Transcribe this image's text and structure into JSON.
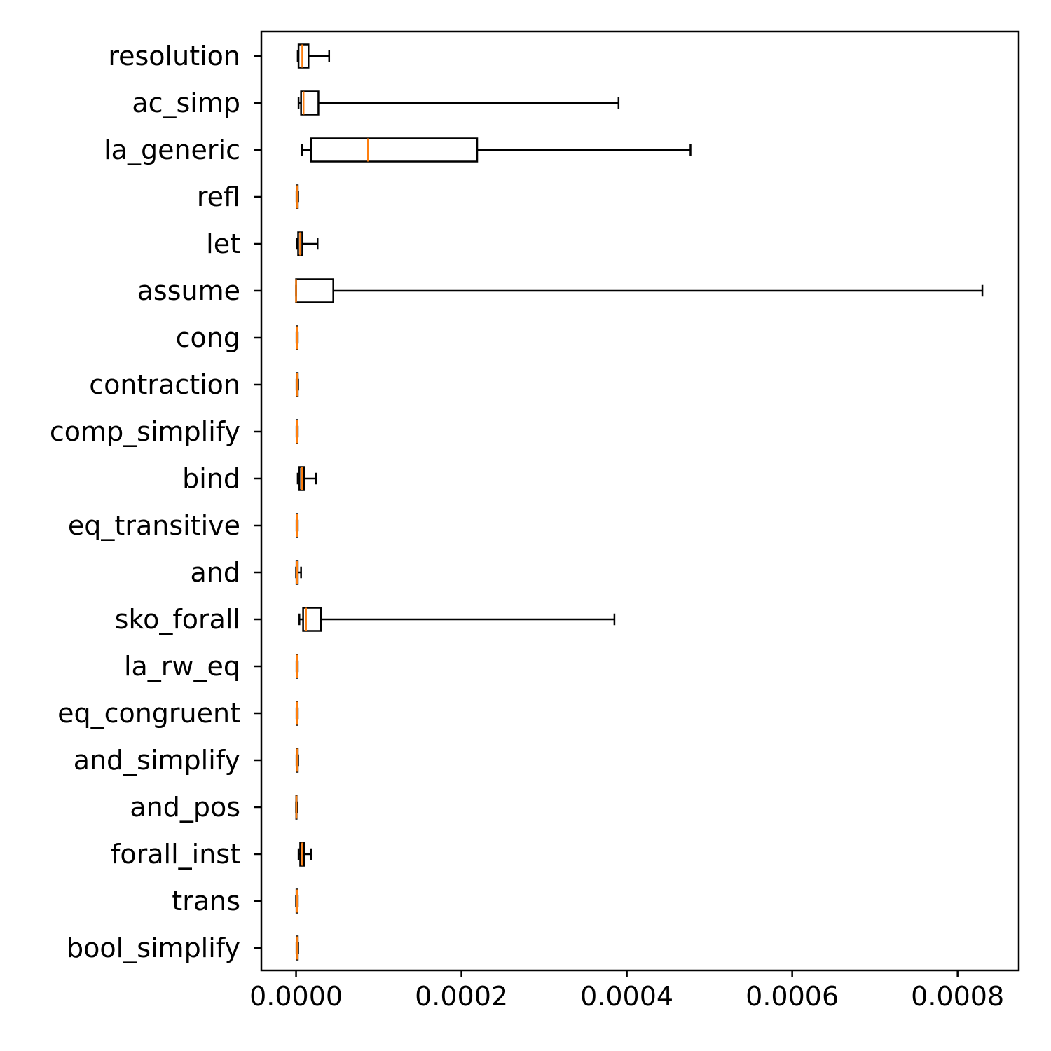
{
  "chart_data": {
    "type": "boxplot",
    "orientation": "horizontal",
    "title": "",
    "xlabel": "",
    "ylabel": "",
    "xlim": [
      -4.2e-05,
      0.000874
    ],
    "xticks": [
      0.0,
      0.0002,
      0.0004,
      0.0006,
      0.0008
    ],
    "xtick_labels": [
      "0.0000",
      "0.0002",
      "0.0004",
      "0.0006",
      "0.0008"
    ],
    "grid": false,
    "colors": {
      "box": "#000000",
      "median": "#ff7f0e"
    },
    "series": [
      {
        "category": "resolution",
        "whisker_low": 2e-06,
        "q1": 3e-06,
        "median": 7.5e-06,
        "q3": 1.5e-05,
        "whisker_high": 4e-05
      },
      {
        "category": "ac_simp",
        "whisker_low": 3e-06,
        "q1": 6e-06,
        "median": 9e-06,
        "q3": 2.7e-05,
        "whisker_high": 0.00039
      },
      {
        "category": "la_generic",
        "whisker_low": 7e-06,
        "q1": 1.8e-05,
        "median": 8.7e-05,
        "q3": 0.000219,
        "whisker_high": 0.000477
      },
      {
        "category": "refl",
        "whisker_low": 5e-07,
        "q1": 1e-06,
        "median": 1.5e-06,
        "q3": 2e-06,
        "whisker_high": 2.5e-06
      },
      {
        "category": "let",
        "whisker_low": 1e-06,
        "q1": 2.5e-06,
        "median": 5e-06,
        "q3": 7.5e-06,
        "whisker_high": 2.6e-05
      },
      {
        "category": "assume",
        "whisker_low": 0.0,
        "q1": 0.0,
        "median": 0.0,
        "q3": 4.5e-05,
        "whisker_high": 0.00083
      },
      {
        "category": "cong",
        "whisker_low": 5e-07,
        "q1": 1e-06,
        "median": 1.2e-06,
        "q3": 1.5e-06,
        "whisker_high": 2e-06
      },
      {
        "category": "contraction",
        "whisker_low": 5e-07,
        "q1": 1e-06,
        "median": 1.5e-06,
        "q3": 2e-06,
        "whisker_high": 2.5e-06
      },
      {
        "category": "comp_simplify",
        "whisker_low": 5e-07,
        "q1": 1e-06,
        "median": 1.2e-06,
        "q3": 1.5e-06,
        "whisker_high": 2e-06
      },
      {
        "category": "bind",
        "whisker_low": 2e-06,
        "q1": 4e-06,
        "median": 7e-06,
        "q3": 9.5e-06,
        "whisker_high": 2.4e-05
      },
      {
        "category": "eq_transitive",
        "whisker_low": 5e-07,
        "q1": 1e-06,
        "median": 1.2e-06,
        "q3": 1.5e-06,
        "whisker_high": 2e-06
      },
      {
        "category": "and",
        "whisker_low": 0.0,
        "q1": 5e-07,
        "median": 1e-06,
        "q3": 2e-06,
        "whisker_high": 6e-06
      },
      {
        "category": "sko_forall",
        "whisker_low": 4e-06,
        "q1": 8.5e-06,
        "median": 1.2e-05,
        "q3": 3e-05,
        "whisker_high": 0.000385
      },
      {
        "category": "la_rw_eq",
        "whisker_low": 5e-07,
        "q1": 1e-06,
        "median": 1.2e-06,
        "q3": 1.5e-06,
        "whisker_high": 2e-06
      },
      {
        "category": "eq_congruent",
        "whisker_low": 5e-07,
        "q1": 1e-06,
        "median": 1.2e-06,
        "q3": 1.5e-06,
        "whisker_high": 2e-06
      },
      {
        "category": "and_simplify",
        "whisker_low": 5e-07,
        "q1": 1e-06,
        "median": 1.5e-06,
        "q3": 2e-06,
        "whisker_high": 2.5e-06
      },
      {
        "category": "and_pos",
        "whisker_low": 0.0,
        "q1": 2e-07,
        "median": 4e-07,
        "q3": 6e-07,
        "whisker_high": 1e-06
      },
      {
        "category": "forall_inst",
        "whisker_low": 3e-06,
        "q1": 5e-06,
        "median": 7.5e-06,
        "q3": 9.5e-06,
        "whisker_high": 1.8e-05
      },
      {
        "category": "trans",
        "whisker_low": 0.0,
        "q1": 5e-07,
        "median": 1e-06,
        "q3": 1.5e-06,
        "whisker_high": 2e-06
      },
      {
        "category": "bool_simplify",
        "whisker_low": 5e-07,
        "q1": 1e-06,
        "median": 1.5e-06,
        "q3": 2e-06,
        "whisker_high": 2.5e-06
      }
    ]
  }
}
